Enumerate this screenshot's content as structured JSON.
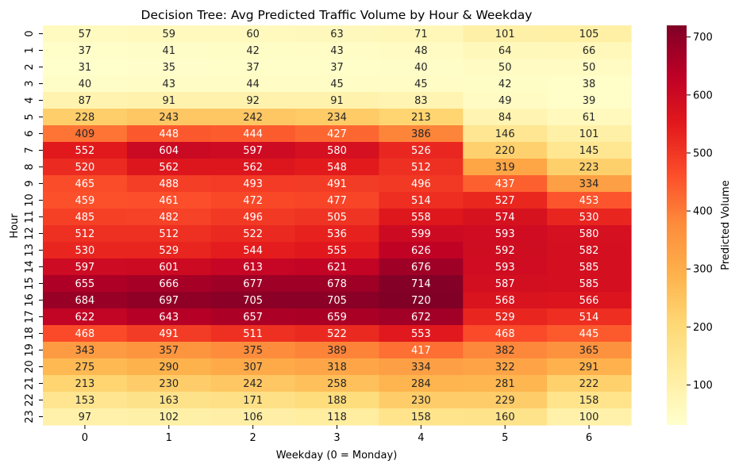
{
  "chart_data": {
    "type": "heatmap",
    "title": "Decision Tree: Avg Predicted Traffic Volume by Hour & Weekday",
    "xlabel": "Weekday (0 = Monday)",
    "ylabel": "Hour",
    "x_categories": [
      "0",
      "1",
      "2",
      "3",
      "4",
      "5",
      "6"
    ],
    "y_categories": [
      "0",
      "1",
      "2",
      "3",
      "4",
      "5",
      "6",
      "7",
      "8",
      "9",
      "10",
      "11",
      "12",
      "13",
      "14",
      "15",
      "16",
      "17",
      "18",
      "19",
      "20",
      "21",
      "22",
      "23"
    ],
    "values": [
      [
        57,
        59,
        60,
        63,
        71,
        101,
        105
      ],
      [
        37,
        41,
        42,
        43,
        48,
        64,
        66
      ],
      [
        31,
        35,
        37,
        37,
        40,
        50,
        50
      ],
      [
        40,
        43,
        44,
        45,
        45,
        42,
        38
      ],
      [
        87,
        91,
        92,
        91,
        83,
        49,
        39
      ],
      [
        228,
        243,
        242,
        234,
        213,
        84,
        61
      ],
      [
        409,
        448,
        444,
        427,
        386,
        146,
        101
      ],
      [
        552,
        604,
        597,
        580,
        526,
        220,
        145
      ],
      [
        520,
        562,
        562,
        548,
        512,
        319,
        223
      ],
      [
        465,
        488,
        493,
        491,
        496,
        437,
        334
      ],
      [
        459,
        461,
        472,
        477,
        514,
        527,
        453
      ],
      [
        485,
        482,
        496,
        505,
        558,
        574,
        530
      ],
      [
        512,
        512,
        522,
        536,
        599,
        593,
        580
      ],
      [
        530,
        529,
        544,
        555,
        626,
        592,
        582
      ],
      [
        597,
        601,
        613,
        621,
        676,
        593,
        585
      ],
      [
        655,
        666,
        677,
        678,
        714,
        587,
        585
      ],
      [
        684,
        697,
        705,
        705,
        720,
        568,
        566
      ],
      [
        622,
        643,
        657,
        659,
        672,
        529,
        514
      ],
      [
        468,
        491,
        511,
        522,
        553,
        468,
        445
      ],
      [
        343,
        357,
        375,
        389,
        417,
        382,
        365
      ],
      [
        275,
        290,
        307,
        318,
        334,
        322,
        291
      ],
      [
        213,
        230,
        242,
        258,
        284,
        281,
        222
      ],
      [
        153,
        163,
        171,
        188,
        230,
        229,
        158
      ],
      [
        97,
        102,
        106,
        118,
        158,
        160,
        100
      ]
    ],
    "colormap": "YlOrRd",
    "vmin": 31,
    "vmax": 720,
    "colorbar": {
      "label": "Predicted Volume",
      "ticks": [
        "100",
        "200",
        "300",
        "400",
        "500",
        "600",
        "700"
      ]
    },
    "grid": false
  }
}
